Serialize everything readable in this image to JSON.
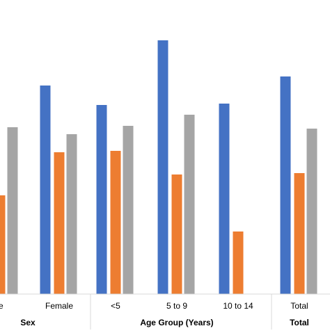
{
  "chart_data": {
    "type": "bar",
    "categories": [
      "le",
      "Female",
      "<5",
      "5 to 9",
      "10 to 14",
      "Total"
    ],
    "category_groups": [
      {
        "label": "Sex",
        "categories": [
          "le",
          "Female"
        ]
      },
      {
        "label": "Age Group (Years)",
        "categories": [
          "<5",
          "5 to 9",
          "10 to 14"
        ]
      },
      {
        "label": "Total",
        "categories": [
          "Total"
        ]
      }
    ],
    "series": [
      {
        "color": "#4472c4",
        "values": [
          null,
          300,
          272,
          365,
          274,
          313
        ]
      },
      {
        "color": "#ed7d31",
        "values": [
          142,
          204,
          206,
          172,
          90,
          174
        ]
      },
      {
        "color": "#a5a5a5",
        "values": [
          240,
          230,
          242,
          258,
          null,
          238
        ]
      }
    ],
    "ylim": [
      0,
      425
    ],
    "grid": false,
    "legend": "none"
  }
}
